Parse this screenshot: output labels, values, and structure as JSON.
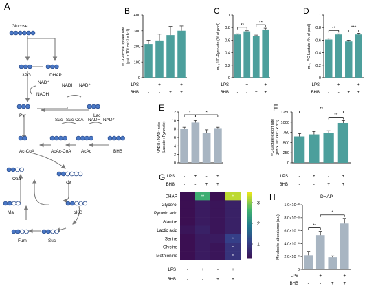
{
  "colors": {
    "teal": "#4c9f9c",
    "grey_bar": "#a8b5c2",
    "pathway_fill": "#4a78c6",
    "pathway_open": "#ffffff",
    "pathway_stroke": "#2d4f8f",
    "arrow": "#7a7a7a",
    "heatmap_low": "#3b0f52",
    "heatmap_high": "#e6e51c"
  },
  "pathway": {
    "panel_letter": "A",
    "labels": {
      "glucose": "Glucose",
      "pg3": "3PG",
      "dhap": "DHAP",
      "nad_plus_1": "NAD⁺",
      "nadh_1": "NADH",
      "pyr": "Pyr",
      "nadh_2": "NADH",
      "nad_plus_2": "NAD⁺",
      "lac": "Lac",
      "suc_top": "Suc",
      "suc_coa": "Suc-CoA",
      "nadh_3": "NADH",
      "nad_plus_3": "NAD⁺",
      "acac_coa": "AcAc-CoA",
      "acac": "AcAc",
      "bhb": "BHB",
      "ac_coa": "Ac-CoA",
      "oaa": "Oaa",
      "cit": "Cit",
      "mal": "Mal",
      "akg": "αKG",
      "fum": "Fum",
      "suc_bottom": "Suc"
    },
    "icons": [
      "glucose-carbon-icon",
      "3pg-carbon-icon",
      "dhap-carbon-icon",
      "pyr-carbon-icon",
      "lac-carbon-icon",
      "acac-coa-carbon-icon",
      "acac-carbon-icon",
      "bhb-carbon-icon",
      "ac-coa-carbon-icon",
      "oaa-carbon-icon",
      "cit-carbon-icon",
      "mal-carbon-icon",
      "akg-carbon-icon",
      "fum-carbon-icon",
      "suc-carbon-icon"
    ]
  },
  "conditions": {
    "row_labels": [
      "LPS",
      "BHB"
    ],
    "lps": [
      "-",
      "+",
      "-",
      "+"
    ],
    "bhb": [
      "-",
      "-",
      "+",
      "+"
    ]
  },
  "chart_data": [
    {
      "panel": "B",
      "type": "bar",
      "ylabel": "¹³C-Glucose uptake rate",
      "ylabel2": "(μM x 10⁶ cel⁻¹ x h⁻¹)",
      "ylim": [
        0,
        400
      ],
      "yticks": [
        0,
        100,
        200,
        300,
        400
      ],
      "values": [
        215,
        238,
        272,
        300
      ],
      "errors": [
        25,
        40,
        55,
        30
      ],
      "color": "teal",
      "significance": []
    },
    {
      "panel": "C",
      "type": "bar",
      "ylabel": "m₊₃ ¹³C-Pyruvate (% of pool)",
      "ylim": [
        0,
        1.0
      ],
      "yticks": [
        0.0,
        0.2,
        0.4,
        0.6,
        0.8,
        1.0
      ],
      "values": [
        0.69,
        0.74,
        0.67,
        0.77
      ],
      "errors": [
        0.01,
        0.01,
        0.01,
        0.02
      ],
      "color": "teal",
      "significance": [
        {
          "from": 0,
          "to": 1,
          "label": "**"
        },
        {
          "from": 2,
          "to": 3,
          "label": "**"
        }
      ]
    },
    {
      "panel": "D",
      "type": "bar",
      "ylabel": "m₊₃ ¹³C-Lactate (% of pool)",
      "ylim": [
        0,
        1.0
      ],
      "yticks": [
        0.0,
        0.2,
        0.4,
        0.6,
        0.8,
        1.0
      ],
      "values": [
        0.61,
        0.69,
        0.58,
        0.69
      ],
      "errors": [
        0.02,
        0.01,
        0.02,
        0.02
      ],
      "color": "teal",
      "significance": [
        {
          "from": 0,
          "to": 1,
          "label": "**"
        },
        {
          "from": 2,
          "to": 3,
          "label": "***"
        }
      ]
    },
    {
      "panel": "E",
      "type": "bar",
      "ylabel": "NADH : NAD⁺ ratio",
      "ylabel2": "(Lactate : Pyruvate)",
      "ylim": [
        0,
        12
      ],
      "yticks": [
        0,
        2,
        4,
        6,
        8,
        10,
        12
      ],
      "values": [
        8.0,
        9.5,
        7.0,
        8.2
      ],
      "errors": [
        0.4,
        0.5,
        0.8,
        0.2
      ],
      "color": "grey_bar",
      "significance": [
        {
          "from": 0,
          "to": 1,
          "label": "*"
        },
        {
          "from": 1,
          "to": 3,
          "label": "*"
        }
      ]
    },
    {
      "panel": "F",
      "type": "bar",
      "ylabel": "¹³C-Lactate export rate",
      "ylabel2": "(μM x 10⁶ cel⁻¹ x h⁻¹)",
      "ylim": [
        0,
        1250
      ],
      "yticks": [
        0,
        250,
        500,
        750,
        1000,
        1250
      ],
      "values": [
        650,
        700,
        730,
        980
      ],
      "errors": [
        70,
        70,
        60,
        60
      ],
      "color": "teal",
      "significance": [
        {
          "from": 2,
          "to": 3,
          "label": "**"
        },
        {
          "from": 0,
          "to": 3,
          "label": "**"
        }
      ]
    },
    {
      "panel": "G",
      "type": "heatmap",
      "rows": [
        "DHAP",
        "Glycerol",
        "Pyruvic acid",
        "Alanine",
        "Lactic acid",
        "Serine",
        "Glycine",
        "Methionine"
      ],
      "values": [
        [
          0.2,
          2.6,
          0.3,
          3.3
        ],
        [
          0.3,
          0.5,
          0.4,
          0.6
        ],
        [
          0.3,
          0.5,
          0.4,
          0.6
        ],
        [
          0.3,
          0.5,
          0.4,
          0.6
        ],
        [
          0.4,
          0.6,
          0.4,
          0.6
        ],
        [
          0.3,
          0.5,
          0.5,
          1.1
        ],
        [
          0.3,
          0.5,
          0.4,
          0.9
        ],
        [
          0.3,
          0.5,
          0.4,
          0.9
        ]
      ],
      "stars": [
        [
          "",
          "**",
          "",
          "*"
        ],
        [
          "",
          "",
          "",
          ""
        ],
        [
          "",
          "",
          "",
          ""
        ],
        [
          "",
          "",
          "",
          ""
        ],
        [
          "",
          "",
          "",
          ""
        ],
        [
          "",
          "",
          "",
          "*"
        ],
        [
          "",
          "",
          "",
          "*"
        ],
        [
          "",
          "",
          "",
          "*"
        ]
      ],
      "colorbar": {
        "min": 0.3,
        "max": 3.5,
        "ticks": [
          1,
          2,
          3
        ]
      }
    },
    {
      "panel": "H",
      "type": "bar",
      "title": "DHAP",
      "ylabel": "Metabolite abundance (a.u)",
      "ylim": [
        0,
        1e-08
      ],
      "yticks": [
        0,
        2e-09,
        4e-09,
        6e-09,
        8e-09,
        1e-08
      ],
      "ytick_labels": [
        "0",
        "2.0×10⁻⁹",
        "4.0×10⁻⁹",
        "6.0×10⁻⁹",
        "8.0×10⁻⁹",
        "1.0×10⁻⁸"
      ],
      "values": [
        2.2e-09,
        5.3e-09,
        1.9e-09,
        7.1e-09
      ],
      "errors": [
        6e-10,
        6e-10,
        2e-10,
        8e-10
      ],
      "color": "grey_bar",
      "significance": [
        {
          "from": 0,
          "to": 1,
          "label": "**"
        },
        {
          "from": 1,
          "to": 3,
          "label": "*"
        }
      ]
    }
  ]
}
